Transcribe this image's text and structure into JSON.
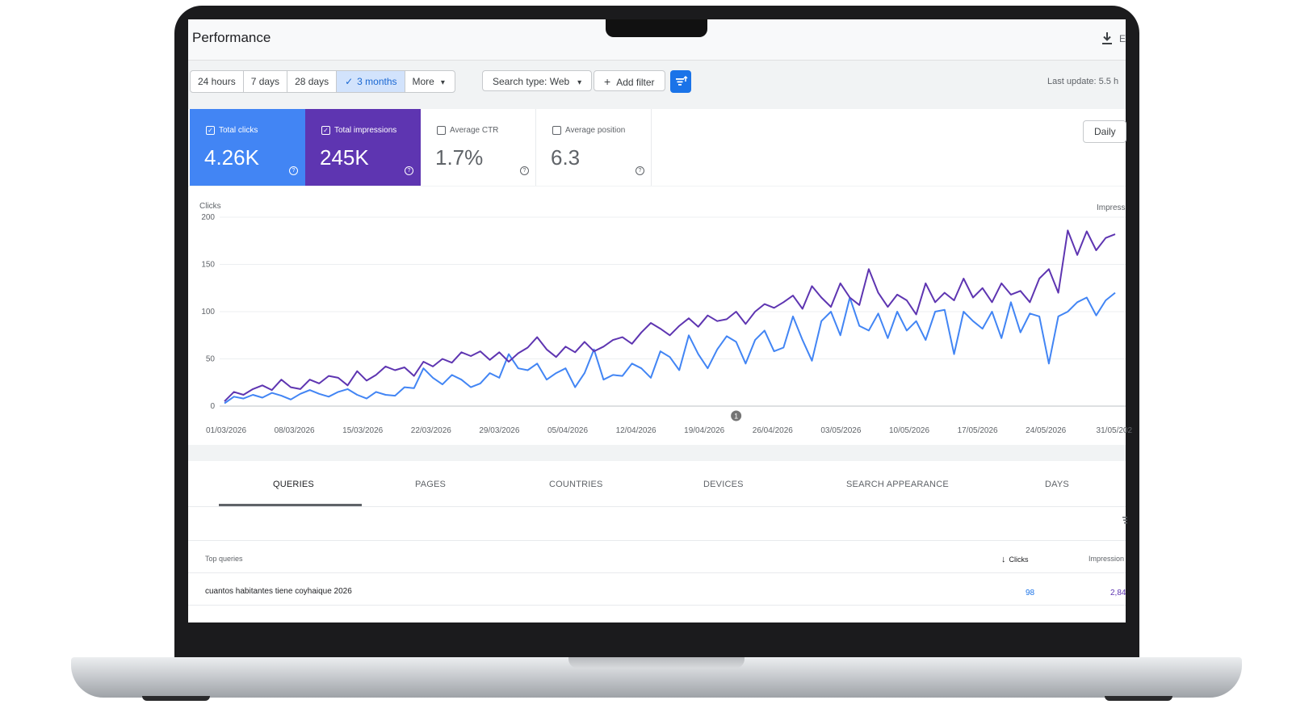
{
  "header": {
    "title": "Performance",
    "truncated_label": "E"
  },
  "toolbar": {
    "date_ranges": [
      {
        "label": "24 hours",
        "active": false
      },
      {
        "label": "7 days",
        "active": false
      },
      {
        "label": "28 days",
        "active": false
      },
      {
        "label": "3 months",
        "active": true
      },
      {
        "label": "More",
        "active": false
      }
    ],
    "check_glyph": "✓",
    "dropdown_glyph": "▾",
    "search_type": "Search type: Web",
    "add_filter": "Add filter",
    "plus_glyph": "+",
    "last_update": "Last update: 5.5 h"
  },
  "metrics": [
    {
      "label": "Total clicks",
      "value": "4.26K",
      "checked": true,
      "color": "#4285f4"
    },
    {
      "label": "Total impressions",
      "value": "245K",
      "checked": true,
      "color": "#5e35b1"
    },
    {
      "label": "Average CTR",
      "value": "1.7%",
      "checked": false
    },
    {
      "label": "Average position",
      "value": "6.3",
      "checked": false
    }
  ],
  "help_glyph": "?",
  "checked_glyph": "✓",
  "granularity": "Daily",
  "chart_data": {
    "type": "line",
    "ylabel_left": "Clicks",
    "ylabel_right": "Impress",
    "y_ticks": [
      "200",
      "150",
      "100",
      "50",
      "0"
    ],
    "ylim": [
      0,
      200
    ],
    "x_tick_labels": [
      "01/03/2026",
      "08/03/2026",
      "15/03/2026",
      "22/03/2026",
      "29/03/2026",
      "05/04/2026",
      "12/04/2026",
      "19/04/2026",
      "26/04/2026",
      "03/05/2026",
      "10/05/2026",
      "17/05/2026",
      "24/05/2026",
      "31/05/202"
    ],
    "annotation_marker": "1",
    "annotation_index": 54,
    "series": [
      {
        "color": "#4285f4",
        "values": [
          3,
          10,
          8,
          12,
          9,
          14,
          11,
          7,
          13,
          17,
          13,
          10,
          15,
          18,
          12,
          8,
          15,
          12,
          11,
          20,
          19,
          40,
          30,
          23,
          33,
          28,
          20,
          24,
          35,
          30,
          55,
          40,
          38,
          45,
          28,
          35,
          40,
          20,
          35,
          60,
          28,
          33,
          32,
          45,
          40,
          30,
          58,
          52,
          38,
          75,
          55,
          40,
          60,
          74,
          68,
          45,
          70,
          80,
          58,
          62,
          95,
          70,
          48,
          90,
          100,
          75,
          115,
          85,
          80,
          98,
          72,
          100,
          80,
          90,
          70,
          100,
          102,
          55,
          100,
          90,
          82,
          100,
          72,
          110,
          78,
          98,
          95,
          45,
          95,
          100,
          110,
          115,
          96,
          112,
          120
        ]
      },
      {
        "color": "#5e35b1",
        "values": [
          5,
          15,
          12,
          18,
          22,
          17,
          28,
          20,
          18,
          28,
          24,
          32,
          30,
          22,
          37,
          27,
          33,
          42,
          38,
          41,
          32,
          47,
          42,
          50,
          46,
          57,
          53,
          58,
          49,
          57,
          47,
          56,
          62,
          73,
          60,
          52,
          63,
          57,
          68,
          58,
          63,
          70,
          73,
          66,
          78,
          88,
          82,
          75,
          85,
          93,
          84,
          96,
          90,
          92,
          100,
          87,
          100,
          108,
          104,
          110,
          117,
          103,
          127,
          115,
          105,
          130,
          115,
          107,
          145,
          120,
          105,
          118,
          112,
          97,
          130,
          110,
          120,
          112,
          135,
          115,
          125,
          110,
          130,
          118,
          122,
          110,
          135,
          145,
          120,
          186,
          160,
          185,
          165,
          178,
          182
        ]
      }
    ]
  },
  "tabs": [
    "QUERIES",
    "PAGES",
    "COUNTRIES",
    "DEVICES",
    "SEARCH APPEARANCE",
    "DAYS"
  ],
  "active_tab": 0,
  "table": {
    "title": "Top queries",
    "sort_glyph": "↓",
    "columns": [
      "Clicks",
      "Impression"
    ],
    "rows": [
      {
        "query": "cuantos habitantes tiene coyhaique 2026",
        "clicks": "98",
        "impressions": "2,84"
      }
    ]
  }
}
